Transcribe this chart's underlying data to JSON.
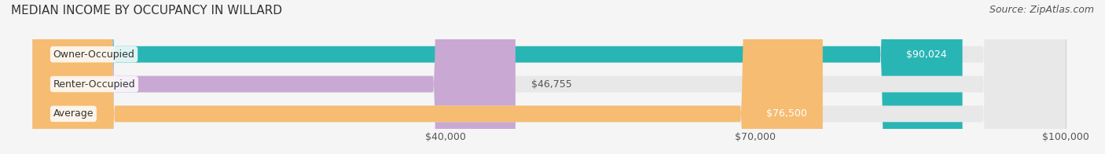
{
  "title": "MEDIAN INCOME BY OCCUPANCY IN WILLARD",
  "source": "Source: ZipAtlas.com",
  "categories": [
    "Owner-Occupied",
    "Renter-Occupied",
    "Average"
  ],
  "values": [
    90024,
    46755,
    76500
  ],
  "bar_colors": [
    "#2ab5b5",
    "#c9a8d4",
    "#f5bc72"
  ],
  "value_labels": [
    "$90,024",
    "$46,755",
    "$76,500"
  ],
  "label_inside": [
    true,
    false,
    true
  ],
  "xlim": [
    0,
    100000
  ],
  "xticks": [
    40000,
    70000,
    100000
  ],
  "xtick_labels": [
    "$40,000",
    "$70,000",
    "$100,000"
  ],
  "background_color": "#f5f5f5",
  "bar_background_color": "#e8e8e8",
  "title_fontsize": 11,
  "source_fontsize": 9,
  "label_fontsize": 9,
  "bar_height": 0.55,
  "bar_gap": 0.15
}
